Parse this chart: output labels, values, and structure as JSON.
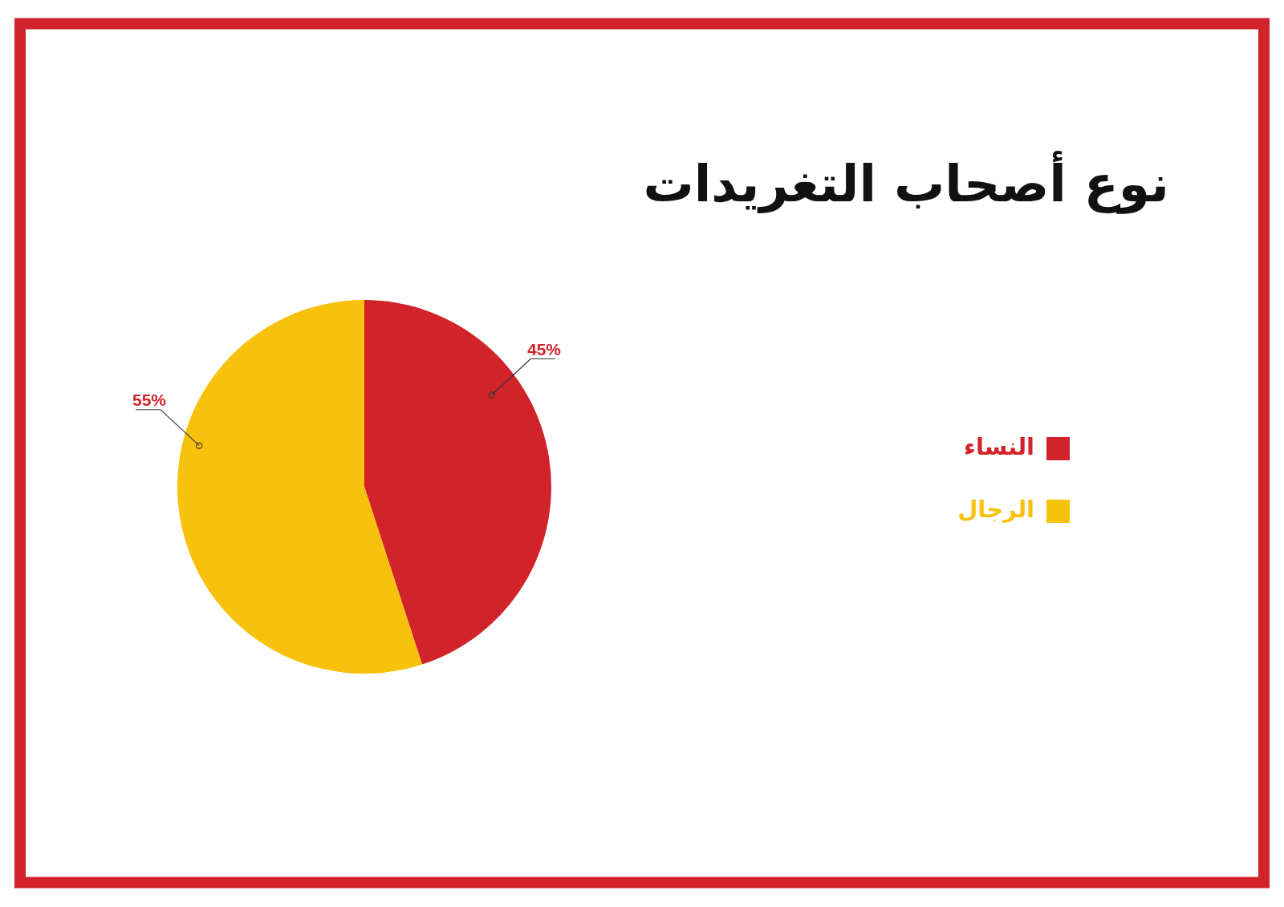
{
  "chart_data": {
    "type": "pie",
    "title": "نوع أصحاب التغريدات",
    "categories": [
      "النساء",
      "الرجال"
    ],
    "values": [
      45,
      55
    ],
    "colors": [
      "#d2232a",
      "#f7c10c"
    ],
    "value_labels": [
      "45%",
      "55%"
    ],
    "legend": "right"
  }
}
